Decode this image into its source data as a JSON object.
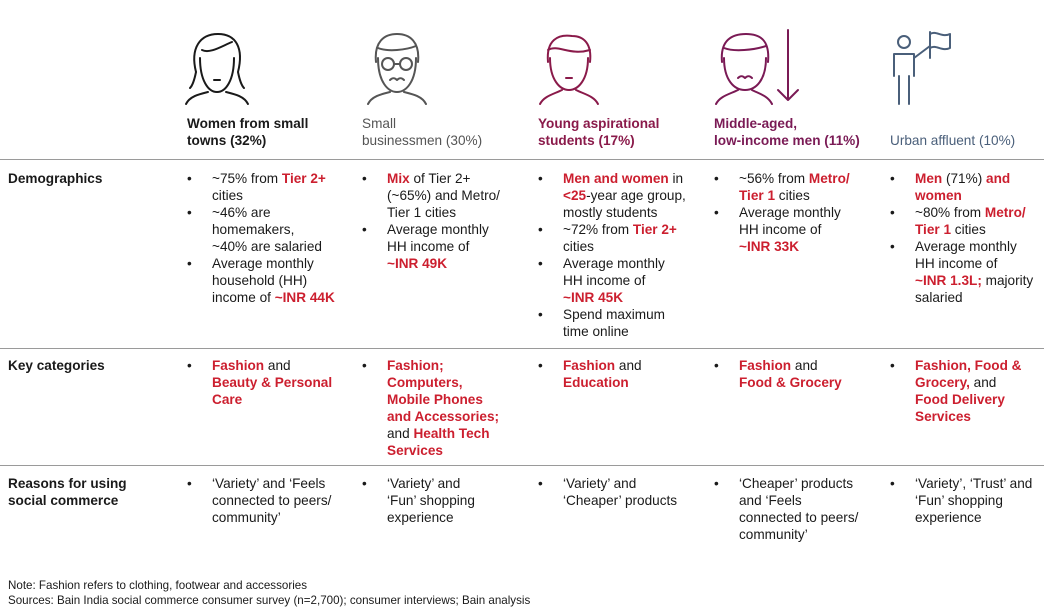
{
  "colors": {
    "highlight": "#cc1f2f",
    "women": "#1a1a1a",
    "small": "#555555",
    "students": "#8a1a4a",
    "midage": "#7a1a55",
    "urban": "#4a5f7a"
  },
  "segments": [
    {
      "name": "Women from small",
      "name2": "towns",
      "pct": "(32%)"
    },
    {
      "name": "Small",
      "name2": "businessmen",
      "pct": "(30%)"
    },
    {
      "name": "Young aspirational",
      "name2": "students",
      "pct": "(17%)"
    },
    {
      "name": "Middle-aged,",
      "name2": "low-income men",
      "pct": "(11%)"
    },
    {
      "name": "Urban affluent",
      "name2": "",
      "pct": "(10%)"
    }
  ],
  "rows": {
    "demographics": "Demographics",
    "key_categories": "Key categories",
    "reasons_1": "Reasons for using",
    "reasons_2": "social commerce"
  },
  "demo": {
    "c1": {
      "b1a": "~75% from ",
      "b1b": "Tier 2+",
      "b1c": "cities",
      "b2a": "~46% are",
      "b2b": "homemakers,",
      "b2c": "~40% are salaried",
      "b3a": "Average monthly",
      "b3b": "household (HH)",
      "b3c": "income of ",
      "b3d": "~INR 44K"
    },
    "c2": {
      "b1a": "Mix",
      "b1b": " of Tier 2+",
      "b1c": "(~65%) and Metro/",
      "b1d": "Tier 1 cities",
      "b2a": "Average monthly",
      "b2b": "HH income of",
      "b2c": "~INR 49K"
    },
    "c3": {
      "b1a": "Men and women",
      "b1b": " in",
      "b1c": "<25",
      "b1d": "-year age group,",
      "b1e": "mostly students",
      "b2a": "~72% from ",
      "b2b": "Tier 2+",
      "b2c": "cities",
      "b3a": "Average monthly",
      "b3b": "HH income of",
      "b3c": "~INR 45K",
      "b4a": "Spend maximum",
      "b4b": "time online"
    },
    "c4": {
      "b1a": "~56% from ",
      "b1b": "Metro/",
      "b1c": "Tier 1",
      "b1d": " cities",
      "b2a": "Average monthly",
      "b2b": "HH income of",
      "b2c": "~INR 33K"
    },
    "c5": {
      "b1a": "Men",
      "b1b": " (71%) ",
      "b1c": "and",
      "b1d": "women",
      "b2a": "~80% from ",
      "b2b": "Metro/",
      "b2c": "Tier 1",
      "b2d": " cities",
      "b3a": "Average monthly",
      "b3b": "HH income of",
      "b3c": "~INR 1.3L;",
      "b3d": " majority",
      "b3e": "salaried"
    }
  },
  "cats": {
    "c1": {
      "a": "Fashion",
      "b": " and",
      "c": "Beauty & Personal",
      "d": "Care"
    },
    "c2": {
      "a": "Fashion;",
      "b": "Computers,",
      "c": "Mobile Phones",
      "d": "and Accessories;",
      "e": "and ",
      "f": "Health Tech",
      "g": "Services"
    },
    "c3": {
      "a": "Fashion",
      "b": " and",
      "c": "Education"
    },
    "c4": {
      "a": "Fashion",
      "b": " and",
      "c": "Food & Grocery"
    },
    "c5": {
      "a": "Fashion, Food &",
      "b": "Grocery,",
      "c": " and",
      "d": "Food Delivery",
      "e": "Services"
    }
  },
  "reasons": {
    "c1": [
      "‘Variety’ and ‘Feels",
      "connected to peers/",
      "community’"
    ],
    "c2": [
      "‘Variety’ and",
      "‘Fun’ shopping",
      "experience"
    ],
    "c3": [
      "‘Variety’ and",
      "‘Cheaper’ products"
    ],
    "c4": [
      "‘Cheaper’ products",
      "and ‘Feels",
      "connected to peers/",
      "community’"
    ],
    "c5": [
      "‘Variety’, ‘Trust’ and",
      "‘Fun’ shopping",
      "experience"
    ]
  },
  "footer": {
    "note": "Note: Fashion refers to clothing, footwear and accessories",
    "sources": "Sources: Bain India social commerce consumer survey (n=2,700); consumer interviews; Bain analysis"
  }
}
